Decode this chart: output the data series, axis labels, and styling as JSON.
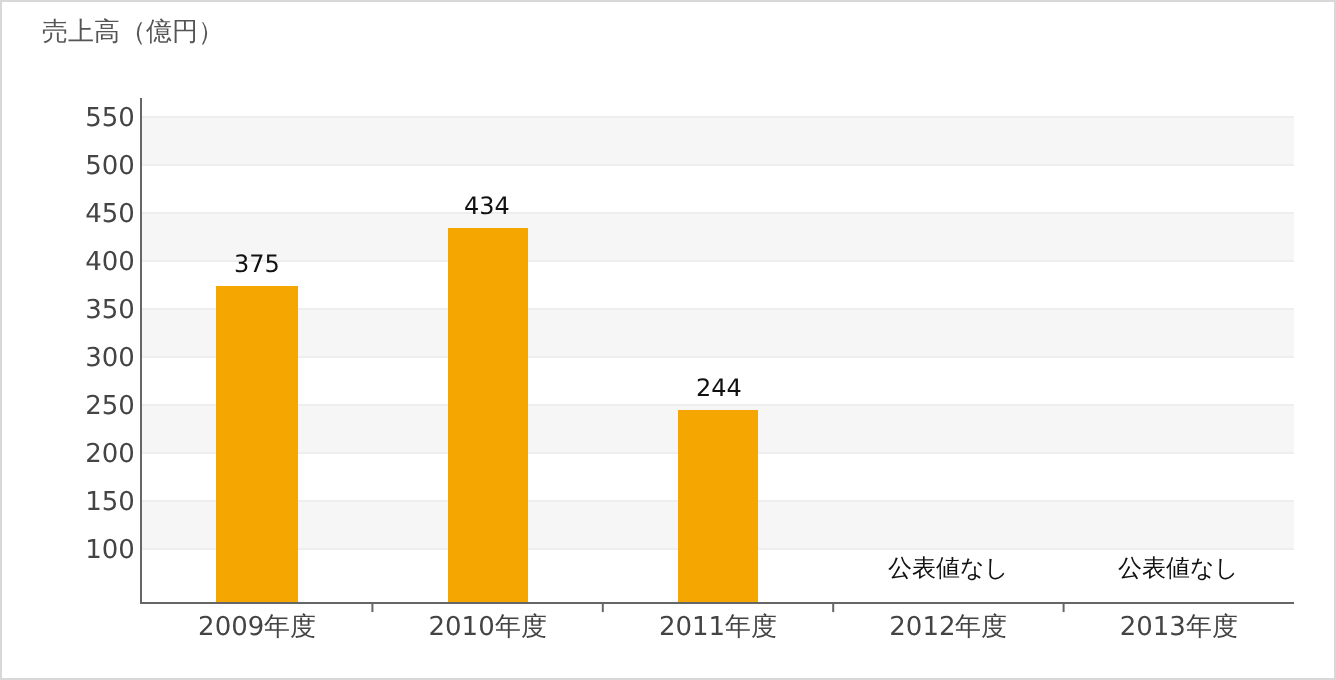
{
  "chart_data": {
    "type": "bar",
    "ylabel": "売上高（億円）",
    "categories": [
      "2009年度",
      "2010年度",
      "2011年度",
      "2012年度",
      "2013年度"
    ],
    "values": [
      375,
      434,
      244,
      null,
      null
    ],
    "value_labels": [
      "375",
      "434",
      "244",
      "公表値なし",
      "公表値なし"
    ],
    "color": "#f5a600",
    "ylim": [
      45,
      570
    ],
    "yticks": [
      100,
      150,
      200,
      250,
      300,
      350,
      400,
      450,
      500,
      550
    ],
    "grid": true
  }
}
